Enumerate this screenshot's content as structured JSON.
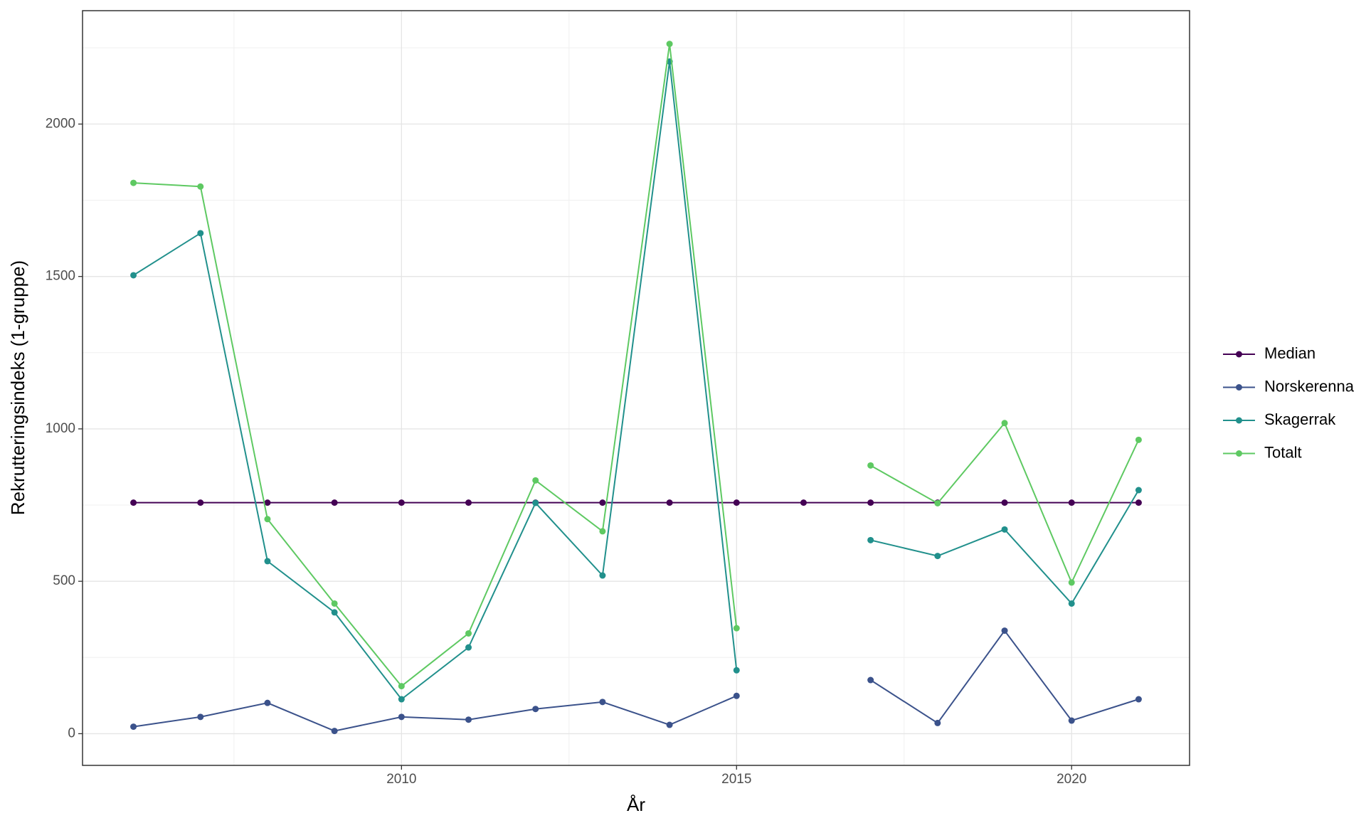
{
  "chart_data": {
    "type": "line",
    "x_label": "År",
    "y_label": "Rekrutteringsindeks (1-gruppe)",
    "x": [
      2006,
      2007,
      2008,
      2009,
      2010,
      2011,
      2012,
      2013,
      2014,
      2015,
      2016,
      2017,
      2018,
      2019,
      2020,
      2021
    ],
    "series": [
      {
        "name": "Median",
        "color": "#440154",
        "values": [
          758,
          758,
          758,
          758,
          758,
          758,
          758,
          758,
          758,
          758,
          758,
          758,
          758,
          758,
          758,
          758
        ]
      },
      {
        "name": "Norskerenna",
        "color": "#3b528b",
        "values": [
          23,
          55,
          101,
          9,
          55,
          46,
          81,
          104,
          29,
          124,
          null,
          176,
          35,
          338,
          43,
          113
        ]
      },
      {
        "name": "Skagerrak",
        "color": "#21908c",
        "values": [
          1504,
          1642,
          566,
          398,
          113,
          283,
          757,
          519,
          2205,
          208,
          null,
          635,
          583,
          670,
          427,
          799
        ]
      },
      {
        "name": "Totalt",
        "color": "#5ec962",
        "values": [
          1807,
          1795,
          704,
          427,
          156,
          329,
          831,
          664,
          2263,
          346,
          null,
          880,
          756,
          1019,
          496,
          964
        ]
      }
    ],
    "xlim": [
      2005.24,
      2021.76
    ],
    "xticks": [
      2010,
      2015,
      2020
    ],
    "ylim": [
      -104,
      2372
    ],
    "yticks": [
      0,
      500,
      1000,
      1500,
      2000
    ],
    "grid": true,
    "legend": "right"
  }
}
